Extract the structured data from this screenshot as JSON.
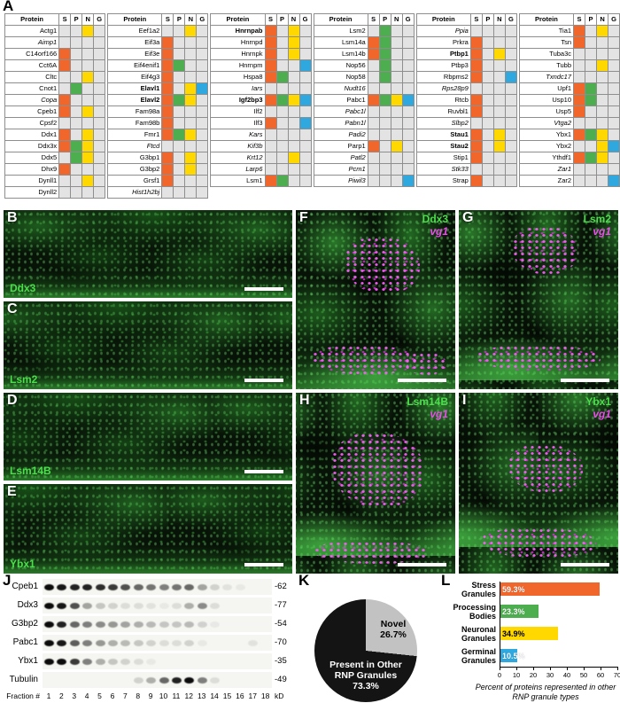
{
  "colors": {
    "S": "#f0662b",
    "P": "#4cae4e",
    "N": "#ffd800",
    "G": "#2fa8df",
    "empty": "#e3e3e3"
  },
  "panelA": {
    "label": "A",
    "columns": [
      "Protein",
      "S",
      "P",
      "N",
      "G"
    ],
    "tables": [
      {
        "rows": [
          {
            "n": "Actg1",
            "st": "",
            "m": "N"
          },
          {
            "n": "Aimp1",
            "st": "i",
            "m": ""
          },
          {
            "n": "C14orf166",
            "st": "",
            "m": "S"
          },
          {
            "n": "Cct6A",
            "st": "",
            "m": "S"
          },
          {
            "n": "Cltc",
            "st": "",
            "m": "N"
          },
          {
            "n": "Cnot1",
            "st": "",
            "m": "P"
          },
          {
            "n": "Copa",
            "st": "i",
            "m": "S"
          },
          {
            "n": "Cpeb1",
            "st": "",
            "m": "SN"
          },
          {
            "n": "Cpsf2",
            "st": "",
            "m": ""
          },
          {
            "n": "Ddx1",
            "st": "",
            "m": "SN"
          },
          {
            "n": "Ddx3x",
            "st": "",
            "m": "SPN"
          },
          {
            "n": "Ddx5",
            "st": "",
            "m": "PN"
          },
          {
            "n": "Dhx9",
            "st": "",
            "m": "S"
          },
          {
            "n": "Dynll1",
            "st": "",
            "m": "N"
          },
          {
            "n": "Dynll2",
            "st": "",
            "m": ""
          }
        ]
      },
      {
        "rows": [
          {
            "n": "Eef1a2",
            "st": "",
            "m": "N"
          },
          {
            "n": "Eif3a",
            "st": "",
            "m": "S"
          },
          {
            "n": "Eif3e",
            "st": "",
            "m": "S"
          },
          {
            "n": "Eif4enif1",
            "st": "",
            "m": "SP"
          },
          {
            "n": "Eif4g3",
            "st": "",
            "m": "S"
          },
          {
            "n": "Elavl1",
            "st": "b",
            "m": "SNG"
          },
          {
            "n": "Elavl2",
            "st": "b",
            "m": "SPN"
          },
          {
            "n": "Fam98a",
            "st": "",
            "m": "S"
          },
          {
            "n": "Fam98b",
            "st": "",
            "m": "S"
          },
          {
            "n": "Fmr1",
            "st": "",
            "m": "SPN"
          },
          {
            "n": "Ftcd",
            "st": "i",
            "m": ""
          },
          {
            "n": "G3bp1",
            "st": "",
            "m": "SN"
          },
          {
            "n": "G3bp2",
            "st": "",
            "m": "SN"
          },
          {
            "n": "Grsf1",
            "st": "",
            "m": "S"
          },
          {
            "n": "Hist1h2bj",
            "st": "i",
            "m": ""
          }
        ]
      },
      {
        "rows": [
          {
            "n": "Hnrnpab",
            "st": "b",
            "m": "SN"
          },
          {
            "n": "Hnrnpd",
            "st": "",
            "m": "SN"
          },
          {
            "n": "Hnrnpk",
            "st": "",
            "m": "SN"
          },
          {
            "n": "Hnrnpm",
            "st": "",
            "m": "SG"
          },
          {
            "n": "Hspa8",
            "st": "",
            "m": "SP"
          },
          {
            "n": "Iars",
            "st": "i",
            "m": ""
          },
          {
            "n": "Igf2bp3",
            "st": "b",
            "m": "SPNG"
          },
          {
            "n": "Ilf2",
            "st": "",
            "m": ""
          },
          {
            "n": "Ilf3",
            "st": "",
            "m": "SG"
          },
          {
            "n": "Kars",
            "st": "i",
            "m": ""
          },
          {
            "n": "Kif3b",
            "st": "i",
            "m": ""
          },
          {
            "n": "Krt12",
            "st": "i",
            "m": "N"
          },
          {
            "n": "Larp6",
            "st": "i",
            "m": ""
          },
          {
            "n": "Lsm1",
            "st": "",
            "m": "SP"
          }
        ]
      },
      {
        "rows": [
          {
            "n": "Lsm2",
            "st": "",
            "m": "P"
          },
          {
            "n": "Lsm14a",
            "st": "",
            "m": "SP"
          },
          {
            "n": "Lsm14b",
            "st": "",
            "m": "SP"
          },
          {
            "n": "Nop56",
            "st": "",
            "m": "P"
          },
          {
            "n": "Nop58",
            "st": "",
            "m": "P"
          },
          {
            "n": "Nudt16",
            "st": "i",
            "m": ""
          },
          {
            "n": "Pabc1",
            "st": "",
            "m": "SPNG"
          },
          {
            "n": "Pabc1l",
            "st": "i",
            "m": ""
          },
          {
            "n": "Pabn1l",
            "st": "i",
            "m": ""
          },
          {
            "n": "Padi2",
            "st": "i",
            "m": ""
          },
          {
            "n": "Parp1",
            "st": "",
            "m": "SN"
          },
          {
            "n": "Patl2",
            "st": "i",
            "m": ""
          },
          {
            "n": "Pcm1",
            "st": "i",
            "m": ""
          },
          {
            "n": "Piwil3",
            "st": "i",
            "m": "G"
          }
        ]
      },
      {
        "rows": [
          {
            "n": "Ppia",
            "st": "i",
            "m": ""
          },
          {
            "n": "Prkra",
            "st": "",
            "m": "S"
          },
          {
            "n": "Ptbp1",
            "st": "b",
            "m": "SN"
          },
          {
            "n": "Ptbp3",
            "st": "",
            "m": "S"
          },
          {
            "n": "Rbpms2",
            "st": "",
            "m": "SG"
          },
          {
            "n": "Rps28p9",
            "st": "i",
            "m": ""
          },
          {
            "n": "Rtcb",
            "st": "",
            "m": "S"
          },
          {
            "n": "Ruvbl1",
            "st": "",
            "m": "S"
          },
          {
            "n": "Slbp2",
            "st": "i",
            "m": ""
          },
          {
            "n": "Stau1",
            "st": "b",
            "m": "SN"
          },
          {
            "n": "Stau2",
            "st": "b",
            "m": "SN"
          },
          {
            "n": "Stip1",
            "st": "",
            "m": "S"
          },
          {
            "n": "Stk33",
            "st": "i",
            "m": ""
          },
          {
            "n": "Strap",
            "st": "",
            "m": "S"
          }
        ]
      },
      {
        "rows": [
          {
            "n": "Tia1",
            "st": "",
            "m": "SN"
          },
          {
            "n": "Tsn",
            "st": "",
            "m": "S"
          },
          {
            "n": "Tuba3c",
            "st": "",
            "m": ""
          },
          {
            "n": "Tubb",
            "st": "",
            "m": "N"
          },
          {
            "n": "Txndc17",
            "st": "i",
            "m": ""
          },
          {
            "n": "Upf1",
            "st": "",
            "m": "SP"
          },
          {
            "n": "Usp10",
            "st": "",
            "m": "SP"
          },
          {
            "n": "Usp5",
            "st": "",
            "m": "S"
          },
          {
            "n": "Vtga2",
            "st": "i",
            "m": ""
          },
          {
            "n": "Ybx1",
            "st": "",
            "m": "SPN"
          },
          {
            "n": "Ybx2",
            "st": "",
            "m": "NG"
          },
          {
            "n": "Ythdf1",
            "st": "",
            "m": "SPN"
          },
          {
            "n": "Zar1",
            "st": "i",
            "m": ""
          },
          {
            "n": "Zar2",
            "st": "",
            "m": "G"
          }
        ]
      }
    ]
  },
  "micrographs": {
    "left": [
      {
        "label": "B",
        "protein": "Ddx3"
      },
      {
        "label": "C",
        "protein": "Lsm2"
      },
      {
        "label": "D",
        "protein": "Lsm14B"
      },
      {
        "label": "E",
        "protein": "Ybx1"
      }
    ],
    "right": [
      {
        "label": "F",
        "protein": "Ddx3",
        "probe": "vg1"
      },
      {
        "label": "G",
        "protein": "Lsm2",
        "probe": "vg1"
      },
      {
        "label": "H",
        "protein": "Lsm14B",
        "probe": "vg1"
      },
      {
        "label": "I",
        "protein": "Ybx1",
        "probe": "vg1"
      }
    ]
  },
  "panelJ": {
    "label": "J",
    "fraction_label": "Fraction #",
    "fractions": [
      "1",
      "2",
      "3",
      "4",
      "5",
      "6",
      "7",
      "8",
      "9",
      "10",
      "11",
      "12",
      "13",
      "14",
      "15",
      "16",
      "17",
      "18"
    ],
    "unit": "kD",
    "blots": [
      {
        "protein": "Cpeb1",
        "mw": "-62",
        "lanes": [
          1,
          0.95,
          0.9,
          0.9,
          0.85,
          0.8,
          0.7,
          0.6,
          0.55,
          0.5,
          0.55,
          0.6,
          0.35,
          0.15,
          0.08,
          0.05,
          0,
          0
        ]
      },
      {
        "protein": "Ddx3",
        "mw": "-77",
        "lanes": [
          1,
          0.95,
          0.7,
          0.35,
          0.2,
          0.15,
          0.1,
          0.1,
          0.08,
          0.05,
          0.1,
          0.3,
          0.45,
          0.1,
          0,
          0,
          0,
          0
        ]
      },
      {
        "protein": "G3bp2",
        "mw": "-54",
        "lanes": [
          1,
          0.9,
          0.6,
          0.5,
          0.45,
          0.4,
          0.35,
          0.3,
          0.25,
          0.2,
          0.2,
          0.25,
          0.15,
          0.05,
          0,
          0,
          0,
          0
        ]
      },
      {
        "protein": "Pabc1",
        "mw": "-70",
        "lanes": [
          1,
          0.95,
          0.65,
          0.5,
          0.4,
          0.3,
          0.25,
          0.2,
          0.15,
          0.1,
          0.1,
          0.15,
          0.05,
          0,
          0,
          0,
          0.08,
          0
        ]
      },
      {
        "protein": "Ybx1",
        "mw": "-35",
        "lanes": [
          1,
          1,
          0.8,
          0.5,
          0.3,
          0.2,
          0.15,
          0.1,
          0.05,
          0,
          0,
          0,
          0,
          0,
          0,
          0,
          0,
          0
        ]
      },
      {
        "protein": "Tubulin",
        "mw": "-49",
        "lanes": [
          0,
          0,
          0,
          0,
          0,
          0,
          0,
          0.15,
          0.3,
          0.6,
          0.9,
          1,
          0.5,
          0.1,
          0,
          0,
          0,
          0
        ]
      }
    ]
  },
  "panelK": {
    "label": "K",
    "slices": [
      {
        "label": "Novel",
        "pct_text": "26.7%",
        "value": 26.7,
        "color": "#c2c2c2"
      },
      {
        "label": "Present in Other RNP Granules",
        "pct_text": "73.3%",
        "value": 73.3,
        "color": "#141414"
      }
    ]
  },
  "panelL": {
    "label": "L",
    "axis_title": "Percent of proteins represented in other RNP granule types",
    "x_ticks": [
      "0",
      "10",
      "20",
      "30",
      "40",
      "50",
      "60",
      "70"
    ],
    "x_max": 70,
    "bars": [
      {
        "line1": "Stress",
        "line2": "Granules",
        "value": 59.3,
        "value_text": "59.3%",
        "color": "#f0662b",
        "text_color": "#ffffff"
      },
      {
        "line1": "Processing",
        "line2": "Bodies",
        "value": 23.3,
        "value_text": "23.3%",
        "color": "#4cae4e",
        "text_color": "#ffffff"
      },
      {
        "line1": "Neuronal",
        "line2": "Granules",
        "value": 34.9,
        "value_text": "34.9%",
        "color": "#ffd800",
        "text_color": "#000000"
      },
      {
        "line1": "Germinal",
        "line2": "Granules",
        "value": 10.5,
        "value_text": "10.5%",
        "color": "#2fa8df",
        "text_color": "#ffffff"
      }
    ]
  },
  "chart_data": [
    {
      "type": "pie",
      "labels": [
        "Present in Other RNP Granules",
        "Novel"
      ],
      "values": [
        73.3,
        26.7
      ],
      "colors": [
        "#141414",
        "#c2c2c2"
      ],
      "legend_position": "inside"
    },
    {
      "type": "bar",
      "orientation": "horizontal",
      "categories": [
        "Stress Granules",
        "Processing Bodies",
        "Neuronal Granules",
        "Germinal Granules"
      ],
      "values": [
        59.3,
        23.3,
        34.9,
        10.5
      ],
      "colors": [
        "#f0662b",
        "#4cae4e",
        "#ffd800",
        "#2fa8df"
      ],
      "xlabel": "Percent of proteins represented in other RNP granule types",
      "xlim": [
        0,
        70
      ],
      "grid": false
    }
  ]
}
